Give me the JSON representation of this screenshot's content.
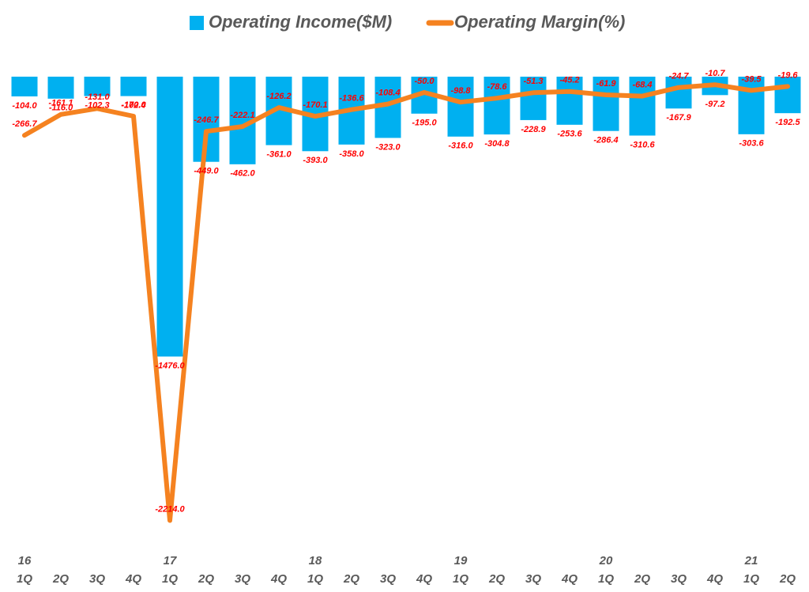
{
  "chart_data": {
    "type": "bar-line",
    "categories": [
      "1Q",
      "2Q",
      "3Q",
      "4Q",
      "1Q",
      "2Q",
      "3Q",
      "4Q",
      "1Q",
      "2Q",
      "3Q",
      "4Q",
      "1Q",
      "2Q",
      "3Q",
      "4Q",
      "1Q",
      "2Q",
      "3Q",
      "4Q",
      "1Q",
      "2Q"
    ],
    "year_labels": [
      "16",
      null,
      null,
      null,
      "17",
      null,
      null,
      null,
      "18",
      null,
      null,
      null,
      "19",
      null,
      null,
      null,
      "20",
      null,
      null,
      null,
      "21",
      null
    ],
    "series": [
      {
        "name": "Operating Income($M)",
        "type": "bar",
        "color": "#00b0f0",
        "values": [
          -104.0,
          -116.0,
          -102.3,
          -102.4,
          -1476.0,
          -449.0,
          -462.0,
          -361.0,
          -393.0,
          -358.0,
          -323.0,
          -195.0,
          -316.0,
          -304.8,
          -228.9,
          -253.6,
          -286.4,
          -310.6,
          -167.9,
          -97.2,
          -303.6,
          -192.5
        ],
        "value_labels": [
          "-104.0",
          "-116.0",
          "-102.3",
          "-102.4",
          "-1476.0",
          "-449.0",
          "-462.0",
          "-361.0",
          "-393.0",
          "-358.0",
          "-323.0",
          "-195.0",
          "-316.0",
          "-304.8",
          "-228.9",
          "-253.6",
          "-286.4",
          "-310.6",
          "-167.9",
          "-97.2",
          "-303.6",
          "-192.5"
        ]
      },
      {
        "name": "Operating Margin(%)",
        "type": "line",
        "axis": "y2",
        "color": "#f58220",
        "values": [
          -266.7,
          -161.1,
          -131.0,
          -170.0,
          -2214.0,
          -246.7,
          -222.1,
          -126.2,
          -170.1,
          -136.6,
          -108.4,
          -50.0,
          -98.8,
          -78.6,
          -51.3,
          -45.2,
          -61.9,
          -68.4,
          -24.7,
          -10.7,
          -39.5,
          -19.6
        ],
        "value_labels": [
          "-266.7",
          "-161.1",
          "-131.0",
          "-170.0",
          "-2214.0",
          "-246.7",
          "-222.1",
          "-126.2",
          "-170.1",
          "-136.6",
          "-108.4",
          "-50.0",
          "-98.8",
          "-78.6",
          "-51.3",
          "-45.2",
          "-61.9",
          "-68.4",
          "-24.7",
          "-10.7",
          "-39.5",
          "-19.6"
        ]
      }
    ],
    "ylim": [
      -2430,
      0
    ],
    "y2lim": [
      -2300,
      30
    ],
    "label_color": "#ff0000"
  }
}
